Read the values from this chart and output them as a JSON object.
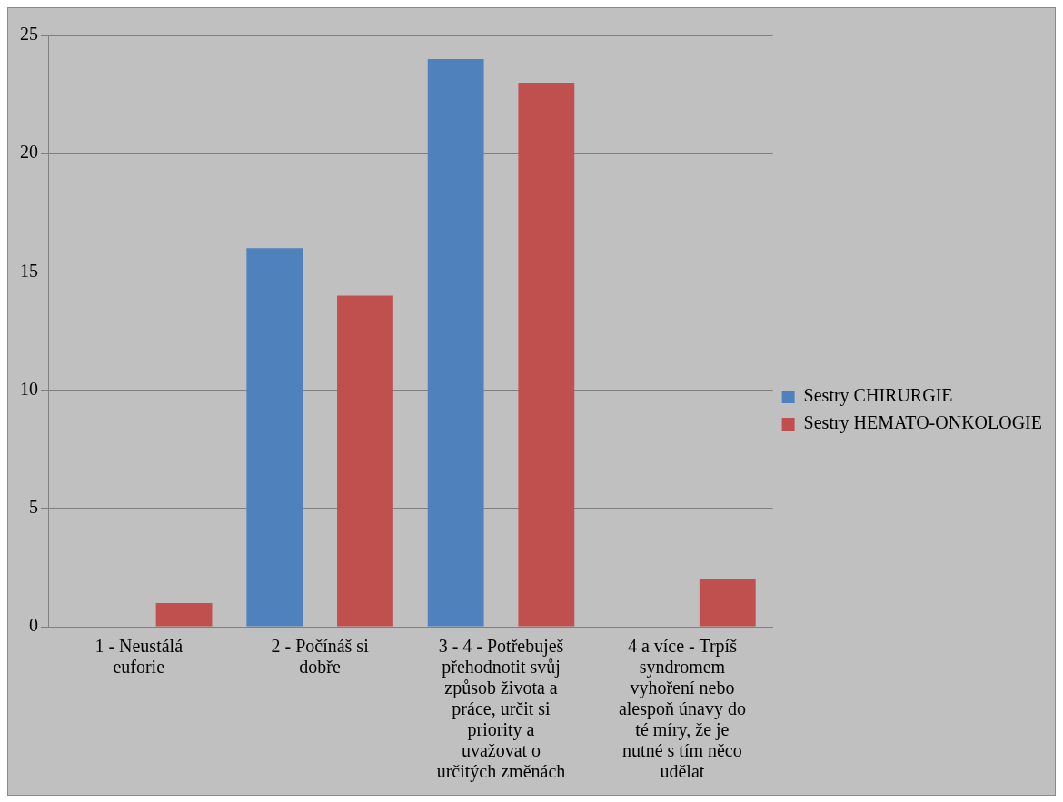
{
  "chart_data": {
    "type": "bar",
    "categories": [
      "1 - Neustálá euforie",
      "2 - Počínáš si dobře",
      "3 - 4 - Potřebuješ přehodnotit svůj způsob života a práce, určit si priority a uvažovat o určitých změnách",
      "4 a více - Trpíš syndromem vyhoření nebo alespoň únavy do té míry, že je nutné s tím něco udělat"
    ],
    "series": [
      {
        "name": "Sestry CHIRURGIE",
        "color": "#4f81bd",
        "values": [
          0,
          16,
          24,
          0
        ]
      },
      {
        "name": "Sestry HEMATO-ONKOLOGIE",
        "color": "#c0504d",
        "values": [
          1,
          14,
          23,
          2
        ]
      }
    ],
    "ylim": [
      0,
      25
    ],
    "yticks": [
      0,
      5,
      10,
      15,
      20,
      25
    ],
    "grid": "y",
    "legend": "right"
  }
}
